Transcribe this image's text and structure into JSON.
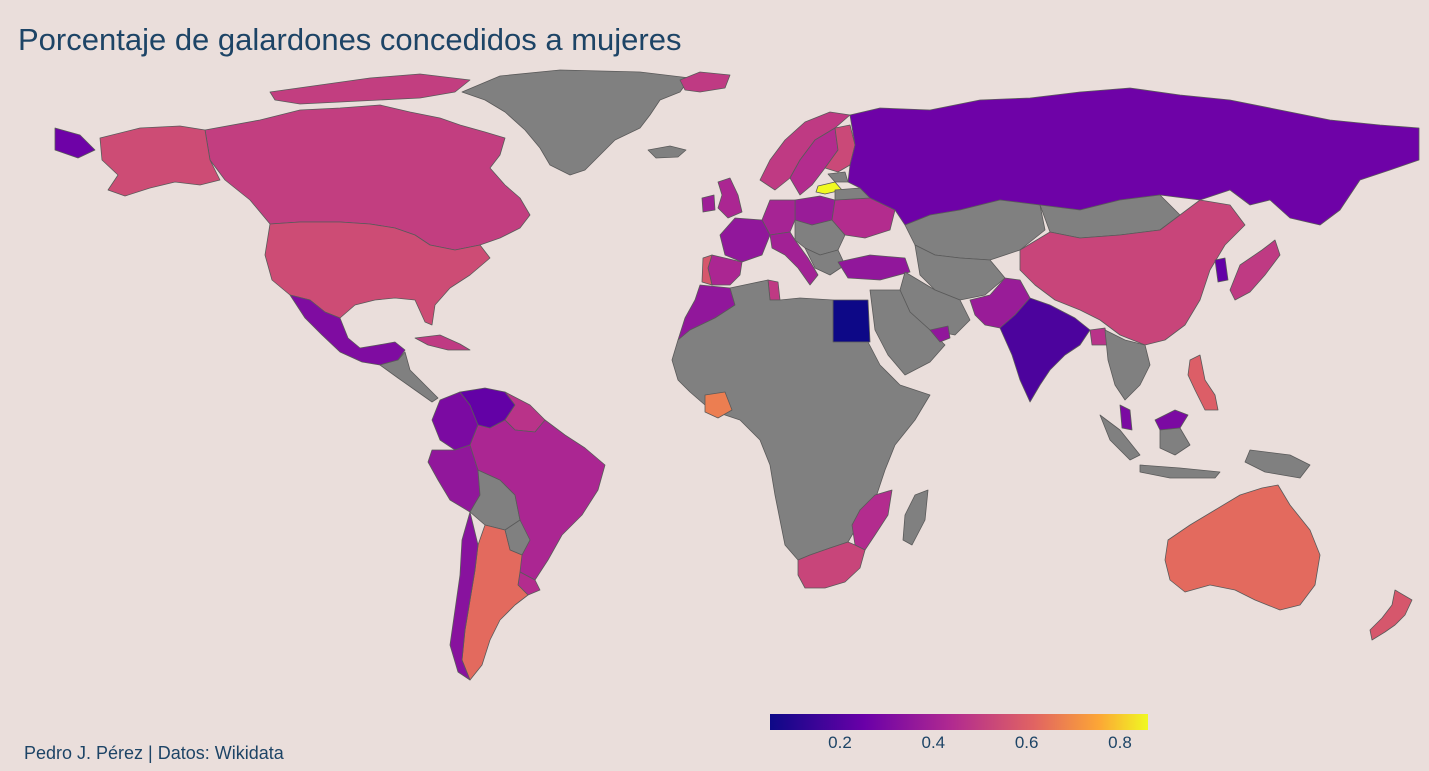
{
  "title": "Porcentaje de galardones concedidos a mujeres",
  "caption": "Pedro J. Pérez | Datos: Wikidata",
  "chart_data": {
    "type": "choropleth",
    "metric": "share_of_awards_to_women",
    "color_scale": "plasma",
    "no_data_color": "#808080",
    "legend": {
      "position": "bottom-right",
      "range": [
        0.05,
        0.86
      ],
      "ticks": [
        0.2,
        0.4,
        0.6,
        0.8
      ],
      "tick_labels": [
        "0.2",
        "0.4",
        "0.6",
        "0.8"
      ],
      "stops": [
        "#0d0887",
        "#6a00a8",
        "#b12a90",
        "#e16462",
        "#fca636",
        "#f0f921"
      ]
    },
    "countries": [
      {
        "name": "Canada",
        "value": 0.43
      },
      {
        "name": "United States",
        "value": 0.47
      },
      {
        "name": "Alaska",
        "value": 0.47
      },
      {
        "name": "Mexico",
        "value": 0.26
      },
      {
        "name": "Cuba",
        "value": 0.42
      },
      {
        "name": "Venezuela",
        "value": 0.2
      },
      {
        "name": "Colombia",
        "value": 0.25
      },
      {
        "name": "Peru",
        "value": 0.3
      },
      {
        "name": "Brazil",
        "value": 0.36
      },
      {
        "name": "Argentina",
        "value": 0.55
      },
      {
        "name": "Chile",
        "value": 0.28
      },
      {
        "name": "Uruguay",
        "value": 0.38
      },
      {
        "name": "Guyana",
        "value": 0.4
      },
      {
        "name": "Greenland",
        "value": null
      },
      {
        "name": "Iceland",
        "value": 0.42
      },
      {
        "name": "United Kingdom",
        "value": 0.36
      },
      {
        "name": "Ireland",
        "value": 0.33
      },
      {
        "name": "Norway",
        "value": 0.42
      },
      {
        "name": "Sweden",
        "value": 0.38
      },
      {
        "name": "Finland",
        "value": 0.46
      },
      {
        "name": "Latvia",
        "value": 0.86
      },
      {
        "name": "Poland",
        "value": 0.32
      },
      {
        "name": "Germany",
        "value": 0.35
      },
      {
        "name": "France",
        "value": 0.3
      },
      {
        "name": "Spain",
        "value": 0.36
      },
      {
        "name": "Portugal",
        "value": 0.5
      },
      {
        "name": "Italy",
        "value": 0.34
      },
      {
        "name": "Ukraine",
        "value": 0.38
      },
      {
        "name": "Turkey",
        "value": 0.3
      },
      {
        "name": "Russia",
        "value": 0.22
      },
      {
        "name": "Kazakhstan",
        "value": null
      },
      {
        "name": "China",
        "value": 0.45
      },
      {
        "name": "Mongolia",
        "value": null
      },
      {
        "name": "Japan",
        "value": 0.42
      },
      {
        "name": "South Korea",
        "value": 0.2
      },
      {
        "name": "India",
        "value": 0.16
      },
      {
        "name": "Pakistan",
        "value": 0.32
      },
      {
        "name": "Bangladesh",
        "value": 0.4
      },
      {
        "name": "Iran",
        "value": null
      },
      {
        "name": "Saudi Arabia",
        "value": null
      },
      {
        "name": "United Arab Emirates",
        "value": 0.3
      },
      {
        "name": "Egypt",
        "value": 0.05
      },
      {
        "name": "Morocco",
        "value": 0.3
      },
      {
        "name": "Tunisia",
        "value": 0.42
      },
      {
        "name": "Ivory Coast",
        "value": 0.6
      },
      {
        "name": "South Africa",
        "value": 0.45
      },
      {
        "name": "Mozambique",
        "value": 0.38
      },
      {
        "name": "Madagascar",
        "value": null
      },
      {
        "name": "Philippines",
        "value": 0.52
      },
      {
        "name": "Malaysia",
        "value": 0.25
      },
      {
        "name": "Indonesia",
        "value": null
      },
      {
        "name": "Australia",
        "value": 0.55
      },
      {
        "name": "New Zealand",
        "value": 0.5
      }
    ]
  }
}
